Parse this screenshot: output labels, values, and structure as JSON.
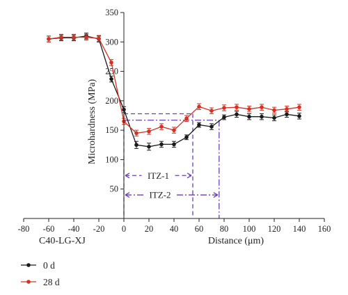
{
  "chart_data": {
    "type": "line",
    "ylabel": "Microhardness (MPa)",
    "xlabel": "Distance (μm)",
    "sample_label": "C40-LG-XJ",
    "xlim": [
      -80,
      160
    ],
    "ylim": [
      0,
      350
    ],
    "xticks": [
      -80,
      -60,
      -40,
      -20,
      0,
      20,
      40,
      60,
      80,
      100,
      120,
      140,
      160
    ],
    "yticks": [
      50,
      100,
      150,
      200,
      250,
      300,
      350
    ],
    "grid": false,
    "legend_position": "bottom-left",
    "series": [
      {
        "name": "0 d",
        "color": "#1a1a1a",
        "x": [
          -60,
          -50,
          -40,
          -30,
          -20,
          -10,
          0,
          10,
          20,
          30,
          40,
          50,
          60,
          70,
          80,
          90,
          100,
          110,
          120,
          130,
          140
        ],
        "y": [
          305,
          307,
          307,
          310,
          305,
          237,
          185,
          125,
          122,
          126,
          126,
          138,
          159,
          156,
          172,
          177,
          173,
          173,
          171,
          177,
          174
        ],
        "err": [
          5,
          5,
          5,
          5,
          5,
          5,
          5,
          6,
          6,
          5,
          5,
          4,
          4,
          5,
          4,
          5,
          5,
          5,
          5,
          5,
          5
        ]
      },
      {
        "name": "28 d",
        "color": "#d6301f",
        "x": [
          -60,
          -50,
          -40,
          -30,
          -20,
          -10,
          0,
          10,
          20,
          30,
          40,
          50,
          60,
          70,
          80,
          90,
          100,
          110,
          120,
          130,
          140
        ],
        "y": [
          305,
          308,
          308,
          308,
          306,
          265,
          165,
          145,
          148,
          156,
          150,
          170,
          190,
          183,
          188,
          189,
          186,
          189,
          184,
          186,
          189
        ],
        "err": [
          5,
          5,
          5,
          5,
          5,
          5,
          5,
          5,
          5,
          5,
          5,
          5,
          5,
          5,
          5,
          5,
          5,
          5,
          5,
          5,
          5
        ]
      }
    ],
    "annotations": {
      "itz1": {
        "label": "ITZ-1",
        "from_x": 0,
        "to_x": 55,
        "level_y": 178,
        "arrow_y": 73
      },
      "itz2": {
        "label": "ITZ-2",
        "from_x": 0,
        "to_x": 76,
        "level_y": 167,
        "arrow_y": 40
      },
      "color": "#6a3fb0"
    }
  }
}
